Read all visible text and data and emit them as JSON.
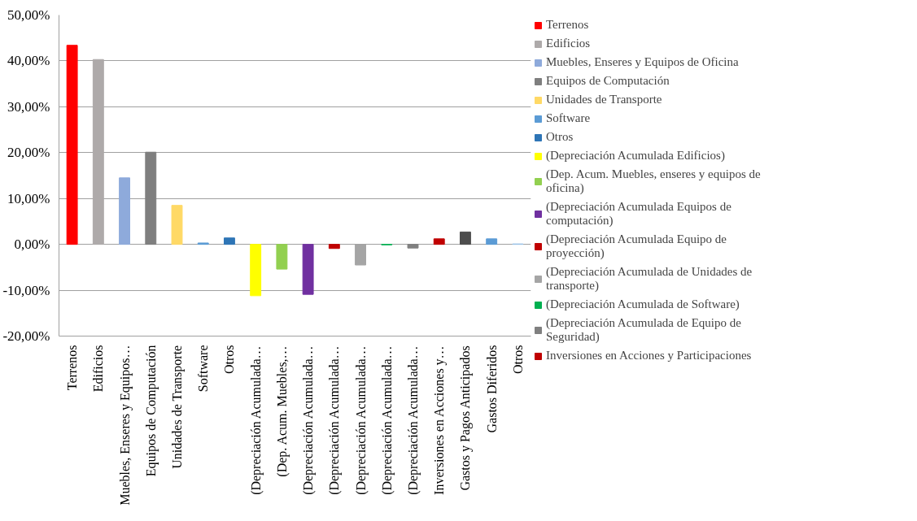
{
  "chart_data": {
    "type": "bar",
    "categories": [
      "Terrenos",
      "Edificios",
      "Muebles, Enseres y Equipos…",
      "Equipos de Computación",
      "Unidades de Transporte",
      "Software",
      "Otros",
      "(Depreciación Acumulada…",
      "(Dep. Acum. Muebles,…",
      "(Depreciación Acumulada…",
      "(Depreciación Acumulada…",
      "(Depreciación Acumulada…",
      "(Depreciación Acumulada…",
      "(Depreciación Acumulada…",
      "Inversiones en Acciones y…",
      "Gastos y Pagos Anticipados",
      "Gastos Diferidos",
      "Otros"
    ],
    "series": [
      {
        "name": "Terrenos",
        "color": "#ff0000",
        "values": [
          43.4,
          null,
          null,
          null,
          null,
          null,
          null,
          null,
          null,
          null,
          null,
          null,
          null,
          null,
          null,
          null,
          null,
          null
        ]
      },
      {
        "name": "Edificios",
        "color": "#aeaaaa",
        "values": [
          null,
          40.3,
          null,
          null,
          null,
          null,
          null,
          null,
          null,
          null,
          null,
          null,
          null,
          null,
          null,
          null,
          null,
          null
        ]
      },
      {
        "name": "Muebles, Enseres y Equipos de Oficina",
        "color": "#8eaadb",
        "values": [
          null,
          null,
          14.5,
          null,
          null,
          null,
          null,
          null,
          null,
          null,
          null,
          null,
          null,
          null,
          null,
          null,
          null,
          null
        ]
      },
      {
        "name": "Equipos de Computación",
        "color": "#7f7f7f",
        "values": [
          null,
          null,
          null,
          20.1,
          null,
          null,
          null,
          null,
          null,
          null,
          null,
          null,
          null,
          null,
          null,
          null,
          null,
          null
        ]
      },
      {
        "name": "Unidades de Transporte",
        "color": "#ffd966",
        "values": [
          null,
          null,
          null,
          null,
          8.5,
          null,
          null,
          null,
          null,
          null,
          null,
          null,
          null,
          null,
          null,
          null,
          null,
          null
        ]
      },
      {
        "name": "Software",
        "color": "#5b9bd5",
        "values": [
          null,
          null,
          null,
          null,
          null,
          0.3,
          null,
          null,
          null,
          null,
          null,
          null,
          null,
          null,
          null,
          null,
          null,
          null
        ]
      },
      {
        "name": "Otros",
        "color": "#2e75b6",
        "values": [
          null,
          null,
          null,
          null,
          null,
          null,
          1.4,
          null,
          null,
          null,
          null,
          null,
          null,
          null,
          null,
          null,
          null,
          null
        ]
      },
      {
        "name": "(Depreciación Acumulada Edificios)",
        "color": "#ffff00",
        "values": [
          null,
          null,
          null,
          null,
          null,
          null,
          null,
          -11.2,
          null,
          null,
          null,
          null,
          null,
          null,
          null,
          null,
          null,
          null
        ]
      },
      {
        "name": "(Dep. Acum. Muebles, enseres y equipos de oficina)",
        "color": "#92d050",
        "values": [
          null,
          null,
          null,
          null,
          null,
          null,
          null,
          null,
          -5.4,
          null,
          null,
          null,
          null,
          null,
          null,
          null,
          null,
          null
        ]
      },
      {
        "name": "(Depreciación Acumulada Equipos de computación)",
        "color": "#7030a0",
        "values": [
          null,
          null,
          null,
          null,
          null,
          null,
          null,
          null,
          null,
          -10.9,
          null,
          null,
          null,
          null,
          null,
          null,
          null,
          null
        ]
      },
      {
        "name": "(Depreciación Acumulada Equipo de proyección)",
        "color": "#c00000",
        "values": [
          null,
          null,
          null,
          null,
          null,
          null,
          null,
          null,
          null,
          null,
          -0.9,
          null,
          null,
          null,
          null,
          null,
          null,
          null
        ]
      },
      {
        "name": "(Depreciación Acumulada de Unidades de transporte)",
        "color": "#a5a5a5",
        "values": [
          null,
          null,
          null,
          null,
          null,
          null,
          null,
          null,
          null,
          null,
          null,
          -4.5,
          null,
          null,
          null,
          null,
          null,
          null
        ]
      },
      {
        "name": "(Depreciación Acumulada de Software)",
        "color": "#00b050",
        "values": [
          null,
          null,
          null,
          null,
          null,
          null,
          null,
          null,
          null,
          null,
          null,
          null,
          -0.1,
          null,
          null,
          null,
          null,
          null
        ]
      },
      {
        "name": "(Depreciación Acumulada de Equipo de Seguridad)",
        "color": "#808080",
        "values": [
          null,
          null,
          null,
          null,
          null,
          null,
          null,
          null,
          null,
          null,
          null,
          null,
          null,
          -0.8,
          null,
          null,
          null,
          null
        ]
      },
      {
        "name": "Inversiones en Acciones y Participaciones",
        "color": "#c00000",
        "values": [
          null,
          null,
          null,
          null,
          null,
          null,
          null,
          null,
          null,
          null,
          null,
          null,
          null,
          null,
          1.2,
          null,
          null,
          null
        ]
      },
      {
        "color": "#4d4d4d",
        "values": [
          null,
          null,
          null,
          null,
          null,
          null,
          null,
          null,
          null,
          null,
          null,
          null,
          null,
          null,
          null,
          2.7,
          null,
          null
        ]
      },
      {
        "color": "#5b9bd5",
        "values": [
          null,
          null,
          null,
          null,
          null,
          null,
          null,
          null,
          null,
          null,
          null,
          null,
          null,
          null,
          null,
          null,
          1.2,
          null
        ]
      },
      {
        "color": "#9dc3e6",
        "values": [
          null,
          null,
          null,
          null,
          null,
          null,
          null,
          null,
          null,
          null,
          null,
          null,
          null,
          null,
          null,
          null,
          null,
          0.1
        ]
      }
    ],
    "ylim": [
      -20,
      50
    ],
    "yticks": [
      {
        "value": -20,
        "label": "-20,00%"
      },
      {
        "value": -10,
        "label": "-10,00%"
      },
      {
        "value": 0,
        "label": "0,00%"
      },
      {
        "value": 10,
        "label": "10,00%"
      },
      {
        "value": 20,
        "label": "20,00%"
      },
      {
        "value": 30,
        "label": "30,00%"
      },
      {
        "value": 40,
        "label": "40,00%"
      },
      {
        "value": 50,
        "label": "50,00%"
      }
    ],
    "grid": "y",
    "legend": "right"
  }
}
